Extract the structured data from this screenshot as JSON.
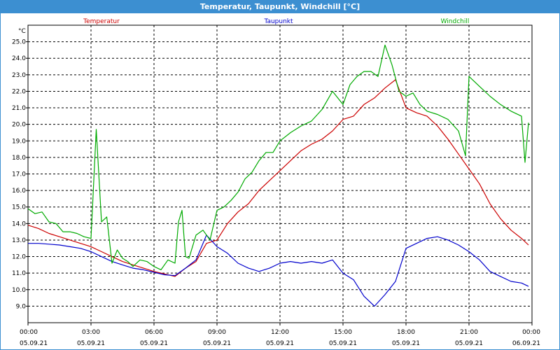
{
  "title": "Temperatur, Taupunkt, Windchill [°C]",
  "chart_data": {
    "type": "line",
    "unit": "°C",
    "ylim": [
      8.0,
      26.0
    ],
    "y_ticks": [
      9.0,
      10.0,
      11.0,
      12.0,
      13.0,
      14.0,
      15.0,
      16.0,
      17.0,
      18.0,
      19.0,
      20.0,
      21.0,
      22.0,
      23.0,
      24.0,
      25.0
    ],
    "x_ticks": [
      {
        "time": "00:00",
        "date": "05.09.21"
      },
      {
        "time": "03:00",
        "date": "05.09.21"
      },
      {
        "time": "06:00",
        "date": "05.09.21"
      },
      {
        "time": "09:00",
        "date": "05.09.21"
      },
      {
        "time": "12:00",
        "date": "05.09.21"
      },
      {
        "time": "15:00",
        "date": "05.09.21"
      },
      {
        "time": "18:00",
        "date": "05.09.21"
      },
      {
        "time": "21:00",
        "date": "05.09.21"
      },
      {
        "time": "00:00",
        "date": "06.09.21"
      }
    ],
    "grid": true,
    "series": [
      {
        "name": "Temperatur",
        "color": "#cc0000",
        "x": [
          "00:00",
          "00:30",
          "01:00",
          "01:30",
          "02:00",
          "02:30",
          "03:00",
          "03:30",
          "04:00",
          "04:30",
          "05:00",
          "05:30",
          "06:00",
          "06:30",
          "07:00",
          "07:30",
          "08:00",
          "08:30",
          "09:00",
          "09:30",
          "10:00",
          "10:30",
          "11:00",
          "11:30",
          "12:00",
          "12:30",
          "13:00",
          "13:30",
          "14:00",
          "14:30",
          "15:00",
          "15:30",
          "16:00",
          "16:30",
          "17:00",
          "17:30",
          "18:00",
          "18:30",
          "19:00",
          "19:30",
          "20:00",
          "20:30",
          "21:00",
          "21:30",
          "22:00",
          "22:30",
          "23:00",
          "23:30",
          "23:50"
        ],
        "values": [
          13.9,
          13.7,
          13.4,
          13.2,
          13.0,
          12.8,
          12.6,
          12.3,
          12.0,
          11.7,
          11.5,
          11.3,
          11.1,
          10.95,
          10.8,
          11.3,
          11.7,
          12.8,
          13.0,
          14.0,
          14.7,
          15.2,
          16.0,
          16.6,
          17.2,
          17.8,
          18.4,
          18.8,
          19.1,
          19.6,
          20.3,
          20.5,
          21.2,
          21.6,
          22.2,
          22.7,
          21.0,
          20.7,
          20.5,
          19.9,
          19.1,
          18.2,
          17.3,
          16.4,
          15.2,
          14.3,
          13.6,
          13.1,
          12.7
        ]
      },
      {
        "name": "Taupunkt",
        "color": "#0000cc",
        "x": [
          "00:00",
          "00:30",
          "01:00",
          "01:30",
          "02:00",
          "02:30",
          "03:00",
          "03:30",
          "04:00",
          "04:30",
          "05:00",
          "05:30",
          "06:00",
          "06:30",
          "07:00",
          "07:30",
          "08:00",
          "08:30",
          "09:00",
          "09:30",
          "10:00",
          "10:30",
          "11:00",
          "11:30",
          "12:00",
          "12:30",
          "13:00",
          "13:30",
          "14:00",
          "14:30",
          "15:00",
          "15:30",
          "16:00",
          "16:30",
          "17:00",
          "17:30",
          "18:00",
          "18:30",
          "19:00",
          "19:30",
          "20:00",
          "20:30",
          "21:00",
          "21:30",
          "22:00",
          "22:30",
          "23:00",
          "23:30",
          "23:50"
        ],
        "values": [
          12.8,
          12.8,
          12.75,
          12.7,
          12.6,
          12.5,
          12.3,
          12.0,
          11.7,
          11.5,
          11.3,
          11.2,
          11.05,
          10.9,
          10.85,
          11.3,
          11.8,
          13.3,
          12.6,
          12.2,
          11.6,
          11.3,
          11.1,
          11.3,
          11.6,
          11.7,
          11.6,
          11.7,
          11.6,
          11.8,
          11.0,
          10.6,
          9.6,
          9.0,
          9.7,
          10.5,
          12.5,
          12.8,
          13.1,
          13.2,
          13.0,
          12.7,
          12.3,
          11.8,
          11.1,
          10.8,
          10.5,
          10.4,
          10.2
        ]
      },
      {
        "name": "Windchill",
        "color": "#00aa00",
        "x": [
          "00:00",
          "00:20",
          "00:40",
          "01:00",
          "01:20",
          "01:40",
          "02:00",
          "02:20",
          "02:40",
          "03:00",
          "03:15",
          "03:30",
          "03:45",
          "04:00",
          "04:15",
          "04:30",
          "04:45",
          "05:00",
          "05:20",
          "05:40",
          "06:00",
          "06:20",
          "06:40",
          "07:00",
          "07:10",
          "07:20",
          "07:30",
          "07:40",
          "08:00",
          "08:20",
          "08:40",
          "09:00",
          "09:20",
          "09:40",
          "10:00",
          "10:20",
          "10:40",
          "11:00",
          "11:20",
          "11:40",
          "12:00",
          "12:30",
          "13:00",
          "13:30",
          "14:00",
          "14:30",
          "15:00",
          "15:20",
          "15:40",
          "16:00",
          "16:20",
          "16:40",
          "17:00",
          "17:20",
          "17:40",
          "18:00",
          "18:20",
          "18:40",
          "19:00",
          "19:30",
          "20:00",
          "20:30",
          "20:50",
          "21:00",
          "21:30",
          "22:00",
          "22:30",
          "23:00",
          "23:30",
          "23:40",
          "23:50"
        ],
        "values": [
          14.9,
          14.6,
          14.7,
          14.1,
          14.0,
          13.5,
          13.5,
          13.4,
          13.2,
          13.1,
          19.7,
          14.1,
          14.4,
          11.6,
          12.4,
          11.9,
          11.7,
          11.4,
          11.8,
          11.7,
          11.4,
          11.2,
          11.8,
          11.6,
          14.1,
          14.8,
          12.0,
          11.9,
          13.3,
          13.6,
          13.0,
          14.8,
          15.0,
          15.4,
          15.9,
          16.7,
          17.1,
          17.8,
          18.3,
          18.3,
          19.0,
          19.5,
          19.9,
          20.2,
          20.9,
          22.0,
          21.2,
          22.4,
          22.9,
          23.2,
          23.2,
          22.9,
          24.8,
          23.6,
          22.0,
          21.7,
          21.9,
          21.2,
          20.8,
          20.6,
          20.3,
          19.6,
          18.1,
          22.9,
          22.3,
          21.7,
          21.2,
          20.8,
          20.5,
          17.7,
          20.1
        ]
      }
    ]
  }
}
